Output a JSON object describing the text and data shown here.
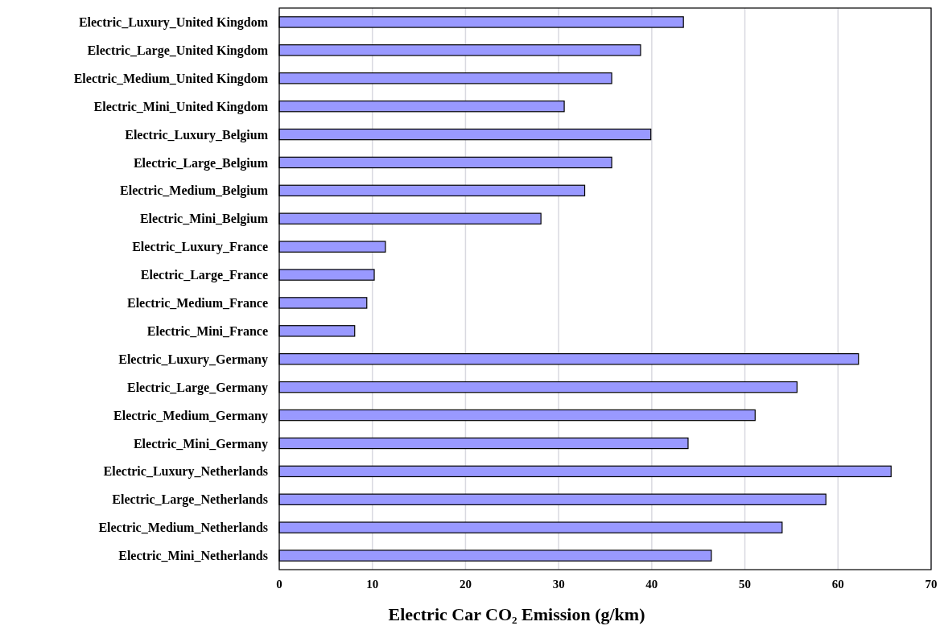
{
  "chart_data": {
    "type": "bar",
    "orientation": "horizontal",
    "xlabel": "Electric Car CO₂ Emission (g/km)",
    "categories": [
      "Electric_Luxury_United Kingdom",
      "Electric_Large_United Kingdom",
      "Electric_Medium_United Kingdom",
      "Electric_Mini_United Kingdom",
      "Electric_Luxury_Belgium",
      "Electric_Large_Belgium",
      "Electric_Medium_Belgium",
      "Electric_Mini_Belgium",
      "Electric_Luxury_France",
      "Electric_Large_France",
      "Electric_Medium_France",
      "Electric_Mini_France",
      "Electric_Luxury_Germany",
      "Electric_Large_Germany",
      "Electric_Medium_Germany",
      "Electric_Mini_Germany",
      "Electric_Luxury_Netherlands",
      "Electric_Large_Netherlands",
      "Electric_Medium_Netherlands",
      "Electric_Mini_Netherlands"
    ],
    "values": [
      43.4,
      38.8,
      35.7,
      30.6,
      39.9,
      35.7,
      32.8,
      28.1,
      11.4,
      10.2,
      9.4,
      8.1,
      62.2,
      55.6,
      51.1,
      43.9,
      65.7,
      58.7,
      54.0,
      46.4
    ],
    "color": "#9999ff",
    "xlim": [
      0,
      70
    ],
    "xticks": [
      0,
      10,
      20,
      30,
      40,
      50,
      60,
      70
    ],
    "grid": "x"
  }
}
